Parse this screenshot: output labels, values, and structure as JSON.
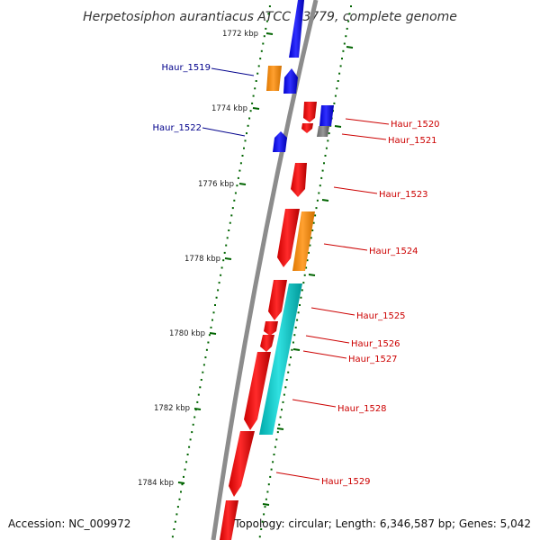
{
  "title": "Herpetosiphon aurantiacus ATCC 23779, complete genome",
  "footer": {
    "accession": "Accession: NC_009972",
    "summary": "Topology: circular; Length: 6,346,587 bp; Genes: 5,042"
  },
  "ruler": {
    "ticks": [
      {
        "label": "1772 kbp"
      },
      {
        "label": "1774 kbp"
      },
      {
        "label": "1776 kbp"
      },
      {
        "label": "1778 kbp"
      },
      {
        "label": "1780 kbp"
      },
      {
        "label": "1782 kbp"
      },
      {
        "label": "1784 kbp"
      }
    ]
  },
  "genes": {
    "left": [
      {
        "label": "Haur_1519"
      },
      {
        "label": "Haur_1522"
      }
    ],
    "right": [
      {
        "label": "Haur_1520"
      },
      {
        "label": "Haur_1521"
      },
      {
        "label": "Haur_1523"
      },
      {
        "label": "Haur_1524"
      },
      {
        "label": "Haur_1525"
      },
      {
        "label": "Haur_1526"
      },
      {
        "label": "Haur_1527"
      },
      {
        "label": "Haur_1528"
      },
      {
        "label": "Haur_1529"
      }
    ]
  },
  "colors": {
    "forward_label": "#00008b",
    "reverse_label": "#cc0000",
    "cds_red": "#ff0000",
    "cds_blue": "#0000ff",
    "cds_orange": "#ff8c00",
    "cds_cyan": "#00cccc",
    "cds_gray": "#777777",
    "tick_green": "#006400",
    "backbone": "#8c8c8c"
  }
}
